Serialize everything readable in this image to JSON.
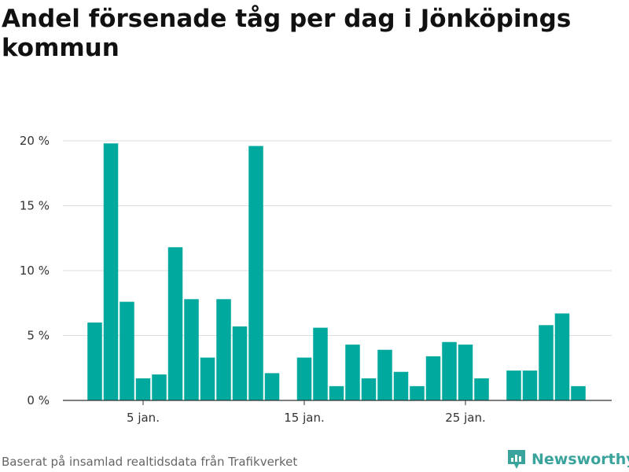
{
  "title": "Andel försenade tåg per dag i Jönköpings kommun",
  "source": "Baserat på insamlad realtidsdata från Trafikverket",
  "brand": {
    "name": "Newsworthy",
    "color": "#3aa39b",
    "icon": "newsworthy-logo-icon"
  },
  "colors": {
    "bar": "#00a99d",
    "grid": "#dddddd",
    "axis": "#333333"
  },
  "chart_data": {
    "type": "bar",
    "title": "Andel försenade tåg per dag i Jönköpings kommun",
    "xlabel": "",
    "ylabel": "",
    "ylim": [
      0,
      20
    ],
    "grid": true,
    "y_ticks": [
      {
        "value": 0,
        "label": "0 %"
      },
      {
        "value": 5,
        "label": "5 %"
      },
      {
        "value": 10,
        "label": "10 %"
      },
      {
        "value": 15,
        "label": "15 %"
      },
      {
        "value": 20,
        "label": "20 %"
      }
    ],
    "x_ticks": [
      {
        "day": 5,
        "label": "5 jan."
      },
      {
        "day": 15,
        "label": "15 jan."
      },
      {
        "day": 25,
        "label": "25 jan."
      }
    ],
    "days": [
      1,
      2,
      3,
      4,
      5,
      6,
      7,
      8,
      9,
      10,
      11,
      12,
      13,
      14,
      15,
      16,
      17,
      18,
      19,
      20,
      21,
      22,
      23,
      24,
      25,
      26,
      27,
      28,
      29,
      30,
      31,
      32,
      33
    ],
    "values": [
      0,
      6.0,
      19.8,
      7.6,
      1.7,
      2.0,
      11.8,
      7.8,
      3.3,
      7.8,
      5.7,
      19.6,
      2.1,
      null,
      3.3,
      5.6,
      1.1,
      4.3,
      1.7,
      3.9,
      2.2,
      1.1,
      3.4,
      4.5,
      4.3,
      1.7,
      null,
      2.3,
      2.3,
      5.8,
      6.7,
      1.1,
      0
    ]
  }
}
